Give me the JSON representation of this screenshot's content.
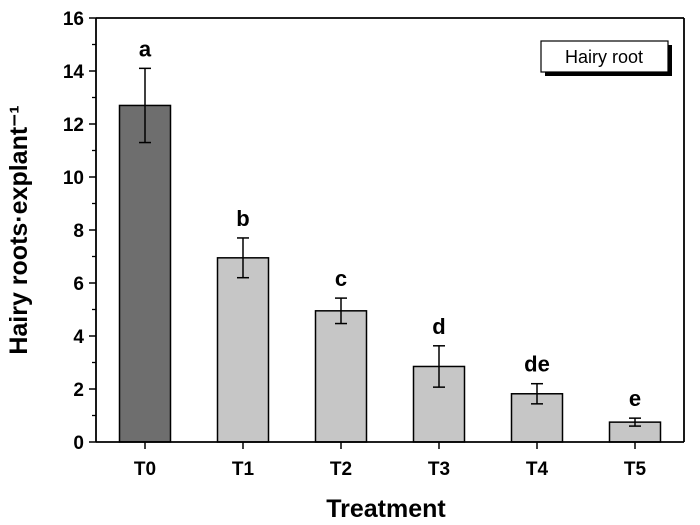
{
  "chart_data": {
    "type": "bar",
    "xlabel": "Treatment",
    "ylabel": "Hairy roots·explant⁻¹",
    "ylim": [
      0,
      16
    ],
    "yticks": [
      0,
      2,
      4,
      6,
      8,
      10,
      12,
      14,
      16
    ],
    "categories": [
      "T0",
      "T1",
      "T2",
      "T3",
      "T4",
      "T5"
    ],
    "series": [
      {
        "name": "Hairy root",
        "values": [
          12.7,
          6.95,
          4.95,
          2.85,
          1.82,
          0.75
        ],
        "errors": [
          1.4,
          0.75,
          0.48,
          0.78,
          0.38,
          0.15
        ],
        "significance": [
          "a",
          "b",
          "c",
          "d",
          "de",
          "e"
        ],
        "colors": [
          "#6e6e6e",
          "#c6c6c6",
          "#c6c6c6",
          "#c6c6c6",
          "#c6c6c6",
          "#c6c6c6"
        ]
      }
    ],
    "legend": {
      "position": "top-right",
      "label": "Hairy root"
    },
    "grid": false
  }
}
